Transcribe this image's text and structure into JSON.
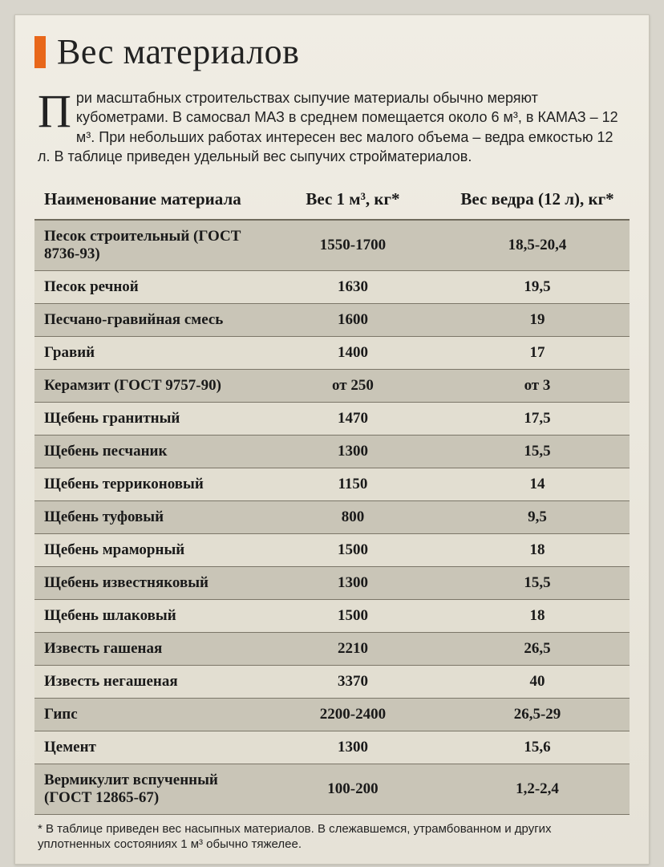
{
  "title": "Вес материалов",
  "intro": {
    "dropcap": "П",
    "text": "ри масштабных строительствах сыпучие материалы обычно меряют кубометрами. В самосвал МАЗ в среднем помещается около 6 м³, в КАМАЗ – 12 м³. При небольших работах интересен вес малого объема – ведра емкостью 12 л. В таблице приведен удельный вес сыпучих стройматериалов."
  },
  "table": {
    "columns": [
      "Наименование материала",
      "Вес 1 м³, кг*",
      "Вес ведра (12 л), кг*"
    ],
    "rows": [
      [
        "Песок строительный (ГОСТ 8736-93)",
        "1550-1700",
        "18,5-20,4"
      ],
      [
        "Песок речной",
        "1630",
        "19,5"
      ],
      [
        "Песчано-гравийная смесь",
        "1600",
        "19"
      ],
      [
        "Гравий",
        "1400",
        "17"
      ],
      [
        "Керамзит (ГОСТ 9757-90)",
        "от 250",
        "от 3"
      ],
      [
        "Щебень гранитный",
        "1470",
        "17,5"
      ],
      [
        "Щебень песчаник",
        "1300",
        "15,5"
      ],
      [
        "Щебень терриконовый",
        "1150",
        "14"
      ],
      [
        "Щебень туфовый",
        "800",
        "9,5"
      ],
      [
        "Щебень мраморный",
        "1500",
        "18"
      ],
      [
        "Щебень известняковый",
        "1300",
        "15,5"
      ],
      [
        "Щебень шлаковый",
        "1500",
        "18"
      ],
      [
        "Известь гашеная",
        "2210",
        "26,5"
      ],
      [
        "Известь негашеная",
        "3370",
        "40"
      ],
      [
        "Гипс",
        "2200-2400",
        "26,5-29"
      ],
      [
        "Цемент",
        "1300",
        "15,6"
      ],
      [
        "Вермикулит вспученный (ГОСТ 12865-67)",
        "100-200",
        "1,2-2,4"
      ]
    ],
    "styling": {
      "header_bg": "transparent",
      "odd_row_bg": "#c9c5b7",
      "even_row_bg": "#e2ded1",
      "border_color": "#7b7668",
      "header_border": "#6f6a5c",
      "font_family_header": "Georgia",
      "font_size_header": 21,
      "font_size_body": 19,
      "col_widths_pct": [
        38,
        31,
        31
      ],
      "text_align": [
        "left",
        "center",
        "center"
      ]
    }
  },
  "footnote": "* В таблице приведен вес насыпных материалов. В слежавшемся, утрамбованном и других уплотненных состояниях 1 м³ обычно тяжелее.",
  "colors": {
    "page_bg": "#d8d5cc",
    "card_bg_top": "#f0ede4",
    "card_bg_bottom": "#e6e2d7",
    "accent": "#e8671a",
    "text": "#1a1a1a"
  }
}
